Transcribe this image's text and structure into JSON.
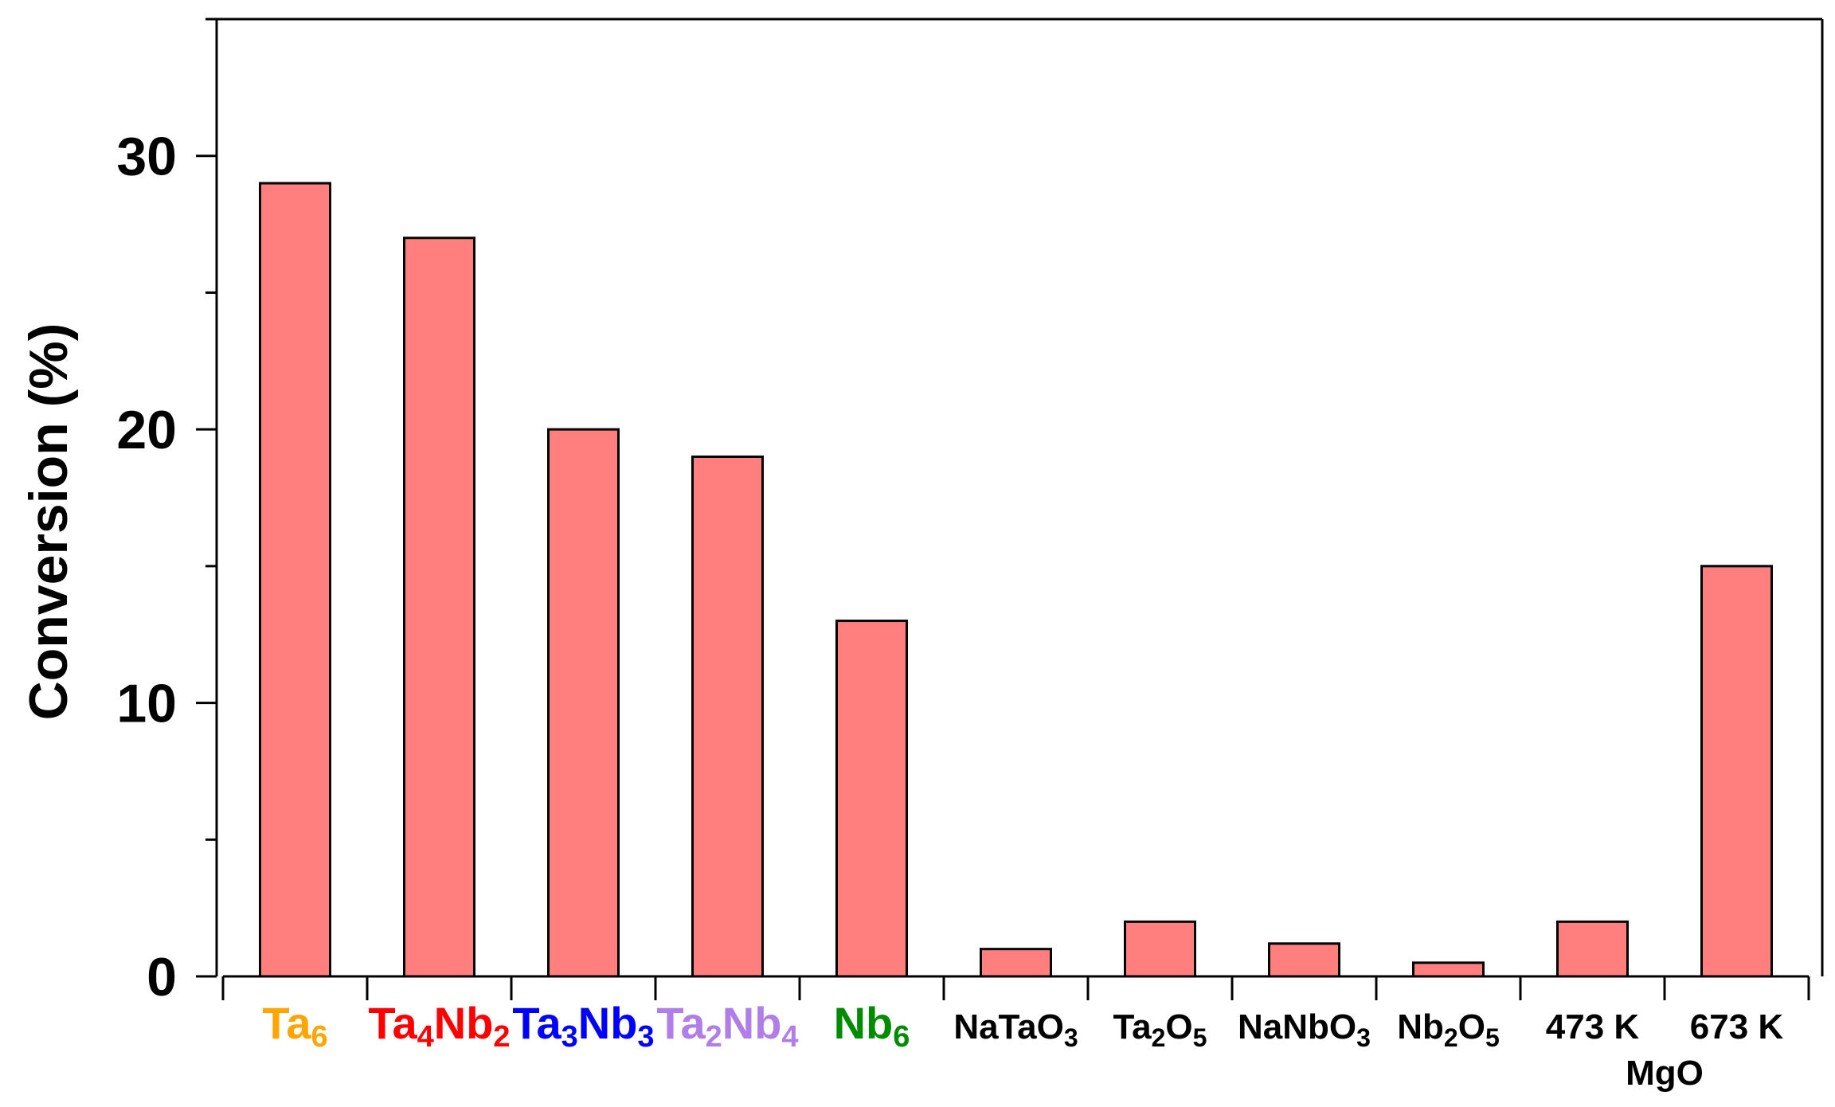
{
  "chart_data": {
    "type": "bar",
    "title": "",
    "xlabel": "",
    "ylabel": "Conversion (%)",
    "ylim": [
      0,
      35
    ],
    "yticks": [
      0,
      10,
      20,
      30
    ],
    "grid": false,
    "bar_color": "#ff7f7f",
    "categories": [
      {
        "base": "Ta",
        "parts": [
          [
            "Ta",
            ""
          ],
          [
            "6",
            "sub"
          ]
        ],
        "color": "#ffa500"
      },
      {
        "base": "Ta4Nb2",
        "parts": [
          [
            "Ta",
            ""
          ],
          [
            "4",
            "sub"
          ],
          [
            "Nb",
            ""
          ],
          [
            "2",
            "sub"
          ]
        ],
        "color": "#ff0000"
      },
      {
        "base": "Ta3Nb3",
        "parts": [
          [
            "Ta",
            ""
          ],
          [
            "3",
            "sub"
          ],
          [
            "Nb",
            ""
          ],
          [
            "3",
            "sub"
          ]
        ],
        "color": "#0000ff"
      },
      {
        "base": "Ta2Nb4",
        "parts": [
          [
            "Ta",
            ""
          ],
          [
            "2",
            "sub"
          ],
          [
            "Nb",
            ""
          ],
          [
            "4",
            "sub"
          ]
        ],
        "color": "#b07ee8"
      },
      {
        "base": "Nb6",
        "parts": [
          [
            "Nb",
            ""
          ],
          [
            "6",
            "sub"
          ]
        ],
        "color": "#008c00"
      },
      {
        "base": "NaTaO3",
        "parts": [
          [
            "NaTaO",
            ""
          ],
          [
            "3",
            "sub"
          ]
        ],
        "color": "#000000"
      },
      {
        "base": "Ta2O5",
        "parts": [
          [
            "Ta",
            ""
          ],
          [
            "2",
            "sub"
          ],
          [
            "O",
            ""
          ],
          [
            "5",
            "sub"
          ]
        ],
        "color": "#000000"
      },
      {
        "base": "NaNbO3",
        "parts": [
          [
            "NaNbO",
            ""
          ],
          [
            "3",
            "sub"
          ]
        ],
        "color": "#000000"
      },
      {
        "base": "Nb2O5",
        "parts": [
          [
            "Nb",
            ""
          ],
          [
            "2",
            "sub"
          ],
          [
            "O",
            ""
          ],
          [
            "5",
            "sub"
          ]
        ],
        "color": "#000000"
      },
      {
        "base": "473 K",
        "parts": [
          [
            "473 K",
            ""
          ]
        ],
        "color": "#000000"
      },
      {
        "base": "673 K",
        "parts": [
          [
            "673 K",
            ""
          ]
        ],
        "color": "#000000"
      }
    ],
    "values": [
      29,
      27,
      20,
      19,
      13,
      1,
      2,
      1.2,
      0.5,
      2,
      15
    ],
    "group_label": "MgO"
  }
}
